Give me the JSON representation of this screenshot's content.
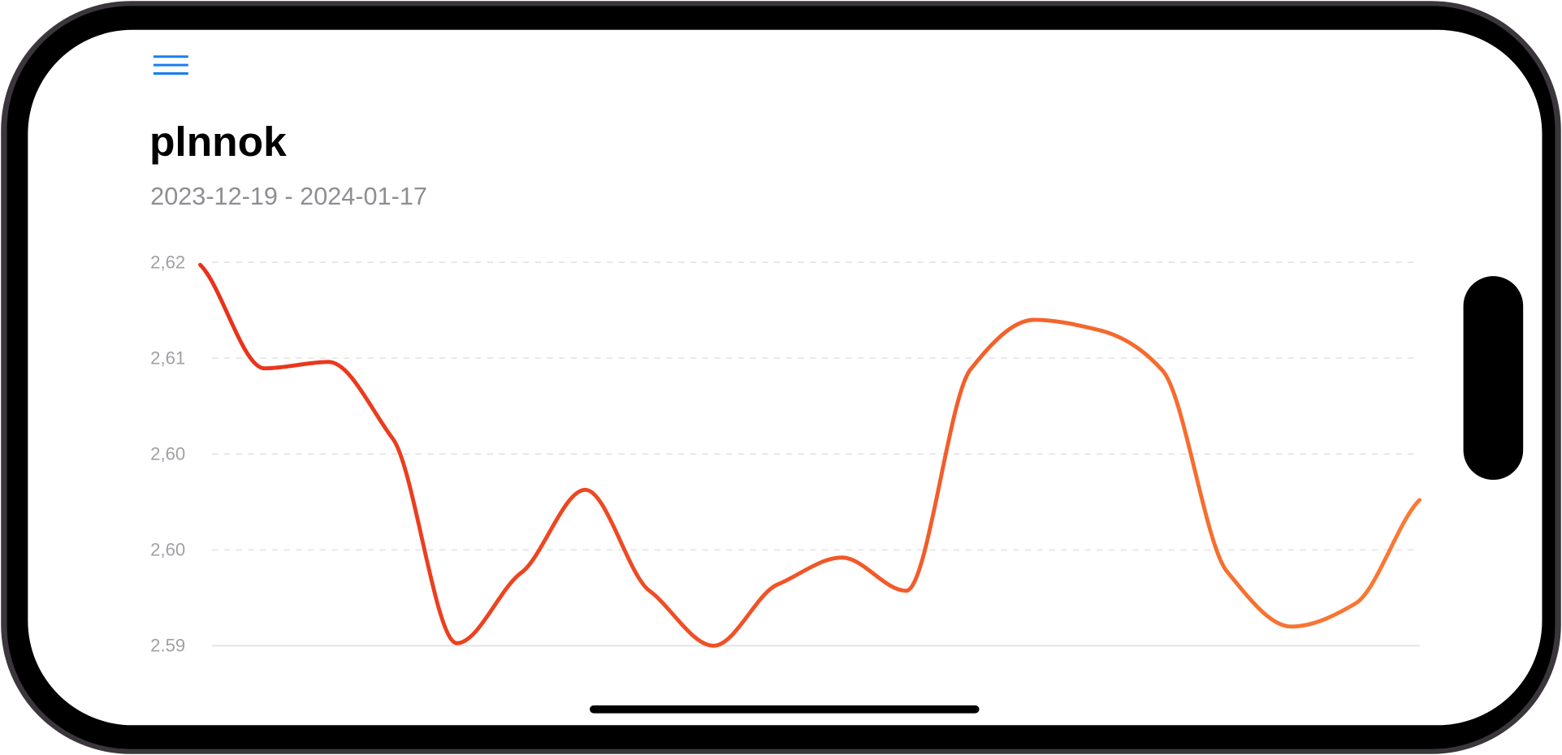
{
  "chart_data": {
    "type": "line",
    "title": "plnnok",
    "subtitle": "2023-12-19 - 2024-01-17",
    "values": [
      2.6198,
      2.6117,
      2.6122,
      2.6062,
      2.5902,
      2.5957,
      2.6022,
      2.5943,
      2.59,
      2.5948,
      2.5969,
      2.5943,
      2.6116,
      2.6155,
      2.6147,
      2.6115,
      2.5958,
      2.5915,
      2.5933,
      2.6014
    ],
    "colors": [
      "#e8311b",
      "#f97b34"
    ],
    "ylim": [
      2.59,
      2.62
    ],
    "yticks": [
      {
        "value": 2.62,
        "label": "2,62"
      },
      {
        "value": 2.6125,
        "label": "2,61"
      },
      {
        "value": 2.605,
        "label": "2,60"
      },
      {
        "value": 2.5975,
        "label": "2,60"
      },
      {
        "value": 2.59,
        "label": "2.59"
      }
    ],
    "grid": true
  }
}
